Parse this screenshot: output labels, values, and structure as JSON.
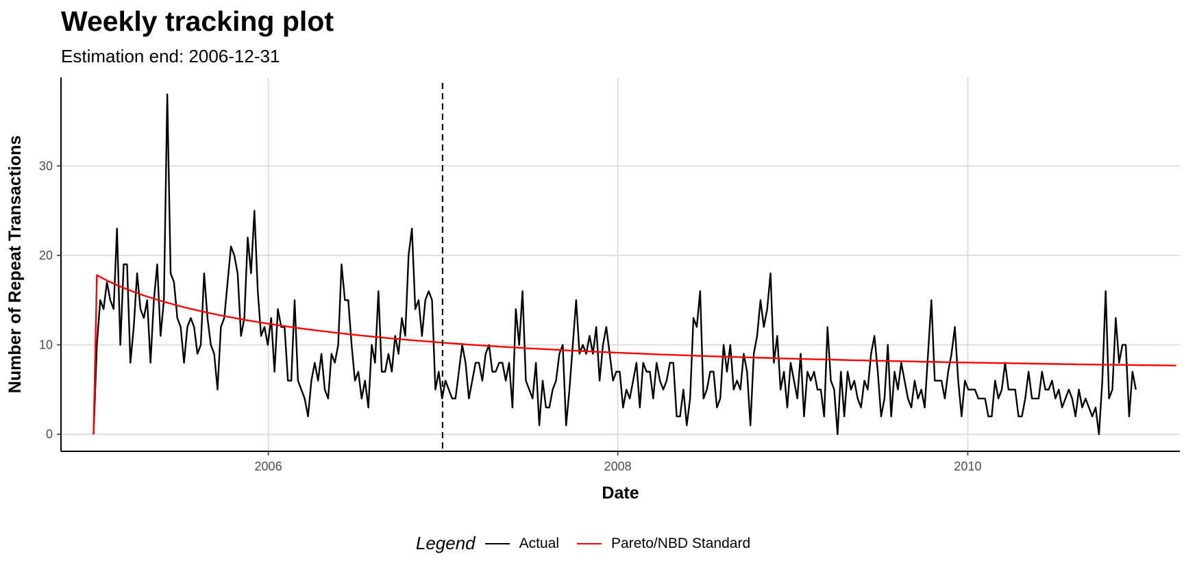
{
  "chart_data": {
    "type": "line",
    "title": "Weekly tracking plot",
    "subtitle": "Estimation end: 2006-12-31",
    "xlabel": "Date",
    "ylabel": "Number of Repeat Transactions",
    "x_ticks": [
      "2006",
      "2008",
      "2010"
    ],
    "y_ticks": [
      "0",
      "10",
      "20",
      "30"
    ],
    "xlim": [
      "2004-10-25",
      "2011-03-20"
    ],
    "ylim": [
      -1.9,
      39.9
    ],
    "grid": true,
    "legend_position": "bottom",
    "legend_title": "Legend",
    "estimation_end": "2006-12-31",
    "x_start": "2005-01-01",
    "x_step_days": 7,
    "series": [
      {
        "name": "Actual",
        "color": "#000000",
        "values": [
          0,
          10,
          15,
          14,
          17,
          15,
          14,
          23,
          10,
          19,
          19,
          8,
          12,
          18,
          14,
          13,
          15,
          8,
          15,
          19,
          11,
          15,
          38,
          18,
          17,
          13,
          12,
          8,
          12,
          13,
          12,
          9,
          10,
          18,
          13,
          10,
          9,
          5,
          12,
          13,
          17,
          21,
          20,
          18,
          11,
          13,
          22,
          18,
          25,
          16,
          11,
          12,
          10,
          13,
          7,
          14,
          12,
          12,
          6,
          6,
          15,
          6,
          5,
          4,
          2,
          6,
          8,
          6,
          9,
          5,
          4,
          9,
          8,
          10,
          19,
          15,
          15,
          10,
          6,
          7,
          4,
          6,
          3,
          10,
          8,
          16,
          7,
          7,
          9,
          7,
          11,
          9,
          13,
          11,
          20,
          23,
          14,
          15,
          11,
          15,
          16,
          15,
          5,
          7,
          4,
          6,
          5,
          4,
          4,
          7,
          10,
          8,
          4,
          6,
          8,
          8,
          6,
          9,
          10,
          7,
          7,
          8,
          8,
          6,
          8,
          3,
          14,
          10,
          16,
          6,
          5,
          4,
          8,
          1,
          6,
          3,
          3,
          5,
          6,
          9,
          10,
          1,
          5,
          10,
          15,
          9,
          10,
          9,
          11,
          9,
          12,
          6,
          10,
          12,
          9,
          6,
          7,
          7,
          3,
          5,
          4,
          6,
          8,
          3,
          8,
          7,
          7,
          4,
          8,
          6,
          5,
          6,
          8,
          8,
          2,
          2,
          5,
          1,
          4,
          13,
          12,
          16,
          4,
          5,
          7,
          7,
          3,
          4,
          10,
          7,
          10,
          5,
          6,
          5,
          9,
          7,
          1,
          9,
          11,
          15,
          12,
          14,
          18,
          8,
          11,
          5,
          7,
          3,
          8,
          6,
          4,
          9,
          2,
          7,
          6,
          7,
          5,
          5,
          2,
          12,
          6,
          5,
          0,
          7,
          2,
          7,
          5,
          6,
          4,
          3,
          6,
          5,
          9,
          11,
          7,
          2,
          4,
          10,
          2,
          7,
          5,
          8,
          6,
          4,
          3,
          6,
          4,
          5,
          3,
          9,
          15,
          6,
          6,
          6,
          4,
          7,
          9,
          12,
          6,
          2,
          6,
          5,
          5,
          5,
          4,
          4,
          4,
          2,
          2,
          6,
          4,
          5,
          8,
          5,
          5,
          5,
          2,
          2,
          4,
          7,
          4,
          4,
          4,
          7,
          5,
          5,
          6,
          4,
          5,
          3,
          4,
          5,
          4,
          2,
          5,
          3,
          4,
          3,
          2,
          3,
          0,
          6,
          16,
          4,
          5,
          13,
          8,
          10,
          10,
          2,
          7,
          5
        ]
      },
      {
        "name": "Pareto/NBD Standard",
        "color": "#ff0000",
        "values": [
          0,
          17.8,
          17.59,
          17.39,
          17.2,
          17.02,
          16.85,
          16.68,
          16.52,
          16.36,
          16.21,
          16.07,
          15.93,
          15.79,
          15.65,
          15.52,
          15.4,
          15.28,
          15.16,
          15.04,
          14.93,
          14.82,
          14.71,
          14.61,
          14.5,
          14.4,
          14.31,
          14.21,
          14.12,
          14.03,
          13.94,
          13.85,
          13.77,
          13.69,
          13.6,
          13.52,
          13.45,
          13.37,
          13.29,
          13.22,
          13.15,
          13.08,
          13.01,
          12.94,
          12.87,
          12.8,
          12.74,
          12.68,
          12.61,
          12.55,
          12.49,
          12.43,
          12.37,
          12.31,
          12.26,
          12.2,
          12.15,
          12.09,
          12.04,
          11.98,
          11.93,
          11.88,
          11.83,
          11.78,
          11.73,
          11.69,
          11.64,
          11.59,
          11.55,
          11.5,
          11.46,
          11.41,
          11.37,
          11.33,
          11.28,
          11.24,
          11.2,
          11.16,
          11.12,
          11.08,
          11.04,
          11.0,
          10.97,
          10.93,
          10.89,
          10.86,
          10.82,
          10.79,
          10.75,
          10.72,
          10.68,
          10.65,
          10.62,
          10.58,
          10.55,
          10.52,
          10.49,
          10.46,
          10.43,
          10.4,
          10.37,
          10.34,
          10.31,
          10.28,
          10.25,
          10.22,
          10.19,
          10.17,
          10.14,
          10.11,
          10.09,
          10.06,
          10.03,
          10.01,
          9.98,
          9.96,
          9.93,
          9.91,
          9.88,
          9.86,
          9.84,
          9.81,
          9.79,
          9.77,
          9.74,
          9.72,
          9.7,
          9.68,
          9.66,
          9.63,
          9.61,
          9.59,
          9.57,
          9.55,
          9.53,
          9.51,
          9.49,
          9.47,
          9.45,
          9.43,
          9.41,
          9.39,
          9.37,
          9.36,
          9.34,
          9.32,
          9.3,
          9.28,
          9.27,
          9.25,
          9.23,
          9.21,
          9.2,
          9.18,
          9.16,
          9.15,
          9.13,
          9.12,
          9.1,
          9.08,
          9.07,
          9.05,
          9.04,
          9.02,
          9.01,
          8.99,
          8.98,
          8.96,
          8.95,
          8.93,
          8.92,
          8.9,
          8.89,
          8.88,
          8.86,
          8.85,
          8.84,
          8.82,
          8.81,
          8.8,
          8.78,
          8.77,
          8.76,
          8.75,
          8.73,
          8.72,
          8.71,
          8.7,
          8.68,
          8.67,
          8.66,
          8.65,
          8.64,
          8.63,
          8.61,
          8.6,
          8.59,
          8.58,
          8.57,
          8.56,
          8.55,
          8.54,
          8.53,
          8.52,
          8.5,
          8.49,
          8.48,
          8.47,
          8.46,
          8.45,
          8.44,
          8.43,
          8.42,
          8.41,
          8.4,
          8.39,
          8.38,
          8.37,
          8.37,
          8.36,
          8.35,
          8.34,
          8.33,
          8.32,
          8.31,
          8.3,
          8.29,
          8.28,
          8.27,
          8.27,
          8.26,
          8.25,
          8.24,
          8.23,
          8.22,
          8.22,
          8.21,
          8.2,
          8.19,
          8.18,
          8.18,
          8.17,
          8.16,
          8.15,
          8.14,
          8.14,
          8.13,
          8.12,
          8.11,
          8.11,
          8.1,
          8.09,
          8.09,
          8.08,
          8.07,
          8.06,
          8.06,
          8.05,
          8.04,
          8.04,
          8.03,
          8.02,
          8.02,
          8.01,
          8.0,
          8.0,
          7.99,
          7.98,
          7.98,
          7.97,
          7.96,
          7.96,
          7.95,
          7.95,
          7.94,
          7.93,
          7.93,
          7.92,
          7.92,
          7.91,
          7.9,
          7.9,
          7.89,
          7.89,
          7.88,
          7.87,
          7.87,
          7.86,
          7.86,
          7.85,
          7.85,
          7.84,
          7.84,
          7.83,
          7.82,
          7.82,
          7.81,
          7.81,
          7.8,
          7.8,
          7.79,
          7.79,
          7.78,
          7.78,
          7.77,
          7.77,
          7.76,
          7.76,
          7.75,
          7.75,
          7.74,
          7.74,
          7.73,
          7.73,
          7.73,
          7.72,
          7.72,
          7.71,
          7.71,
          7.7,
          7.7,
          7.69,
          7.69,
          7.68
        ]
      }
    ]
  }
}
